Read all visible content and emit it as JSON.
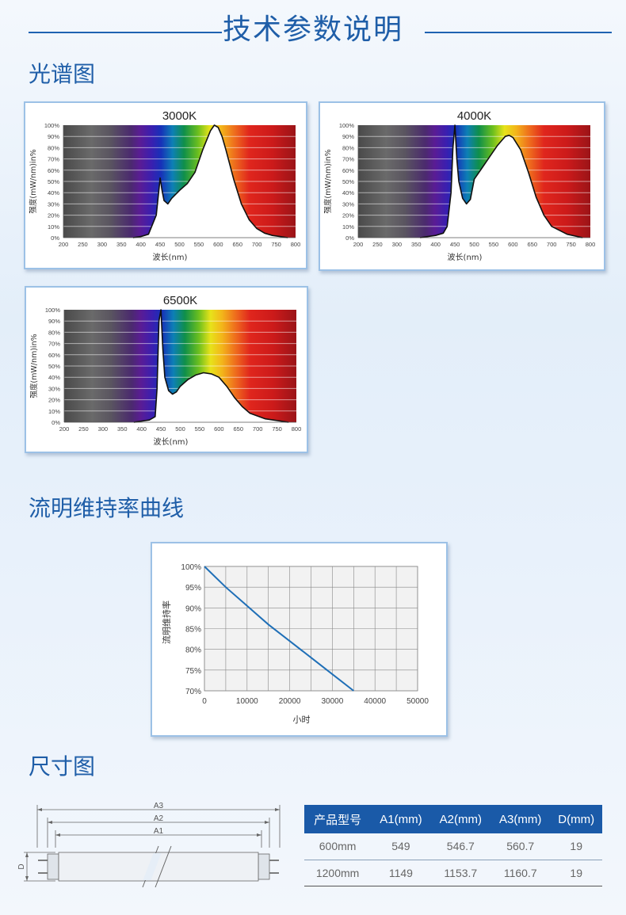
{
  "header": {
    "title": "技术参数说明"
  },
  "sections": {
    "spectrum": "光谱图",
    "lumen": "流明维持率曲线",
    "dimension": "尺寸图"
  },
  "spectrum_charts": [
    {
      "title": "3000K",
      "ylabel": "强度(mW/nm)in%",
      "xlabel": "波长(nm)"
    },
    {
      "title": "4000K",
      "ylabel": "强度(mW/nm)in%",
      "xlabel": "波长(nm)"
    },
    {
      "title": "6500K",
      "ylabel": "强度(mW/nm)in%",
      "xlabel": "波长(nm)"
    }
  ],
  "spectrum_ticks": {
    "y": [
      "100%",
      "90%",
      "80%",
      "70%",
      "60%",
      "50%",
      "40%",
      "30%",
      "20%",
      "10%",
      "0%"
    ],
    "x": [
      "200",
      "250",
      "300",
      "350",
      "400",
      "450",
      "500",
      "550",
      "600",
      "650",
      "700",
      "750",
      "800"
    ]
  },
  "lumen_chart": {
    "ylabel": "流明维持率",
    "xlabel": "小时",
    "yticks": [
      "100%",
      "95%",
      "90%",
      "85%",
      "80%",
      "75%",
      "70%"
    ],
    "xticks": [
      "0",
      "10000",
      "20000",
      "30000",
      "40000",
      "50000"
    ]
  },
  "dimension_labels": {
    "a3": "A3",
    "a2": "A2",
    "a1": "A1",
    "d": "D"
  },
  "table": {
    "headers": [
      "产品型号",
      "A1(mm)",
      "A2(mm)",
      "A3(mm)",
      "D(mm)"
    ],
    "rows": [
      [
        "600mm",
        "549",
        "546.7",
        "560.7",
        "19"
      ],
      [
        "1200mm",
        "1149",
        "1153.7",
        "1160.7",
        "19"
      ]
    ]
  },
  "chart_data": [
    {
      "type": "area",
      "title": "3000K",
      "xlabel": "波长(nm)",
      "ylabel": "强度(mW/nm)in%",
      "xlim": [
        200,
        800
      ],
      "ylim": [
        0,
        100
      ],
      "x": [
        380,
        400,
        420,
        440,
        450,
        455,
        460,
        470,
        480,
        500,
        520,
        540,
        560,
        580,
        590,
        600,
        610,
        620,
        640,
        660,
        680,
        700,
        720,
        740,
        760,
        780
      ],
      "values": [
        0,
        1,
        3,
        20,
        53,
        42,
        33,
        30,
        35,
        42,
        48,
        58,
        78,
        95,
        100,
        98,
        90,
        78,
        52,
        30,
        16,
        8,
        4,
        2,
        1,
        0
      ]
    },
    {
      "type": "area",
      "title": "4000K",
      "xlabel": "波长(nm)",
      "ylabel": "强度(mW/nm)in%",
      "xlim": [
        200,
        800
      ],
      "ylim": [
        0,
        100
      ],
      "x": [
        360,
        380,
        400,
        420,
        430,
        440,
        445,
        450,
        455,
        460,
        470,
        480,
        490,
        500,
        520,
        540,
        560,
        580,
        590,
        600,
        620,
        640,
        660,
        680,
        700,
        740,
        780
      ],
      "values": [
        0,
        1,
        2,
        4,
        10,
        40,
        80,
        100,
        70,
        50,
        35,
        30,
        34,
        52,
        62,
        72,
        82,
        90,
        91,
        89,
        78,
        58,
        36,
        20,
        10,
        3,
        0
      ]
    },
    {
      "type": "area",
      "title": "6500K",
      "xlabel": "波长(nm)",
      "ylabel": "强度(mW/nm)in%",
      "xlim": [
        200,
        800
      ],
      "ylim": [
        0,
        100
      ],
      "x": [
        380,
        400,
        420,
        435,
        440,
        445,
        450,
        455,
        460,
        470,
        480,
        490,
        500,
        520,
        540,
        560,
        580,
        600,
        620,
        640,
        660,
        680,
        720,
        780
      ],
      "values": [
        0,
        1,
        2,
        5,
        30,
        90,
        100,
        65,
        40,
        28,
        25,
        27,
        32,
        38,
        42,
        44,
        43,
        40,
        32,
        22,
        14,
        8,
        3,
        0
      ]
    },
    {
      "type": "line",
      "xlabel": "小时",
      "ylabel": "流明维持率",
      "xlim": [
        0,
        50000
      ],
      "ylim": [
        70,
        100
      ],
      "x": [
        0,
        5000,
        10000,
        15000,
        20000,
        25000,
        30000,
        35000
      ],
      "values": [
        100,
        95,
        90.5,
        86,
        82,
        78,
        74,
        70
      ]
    }
  ]
}
